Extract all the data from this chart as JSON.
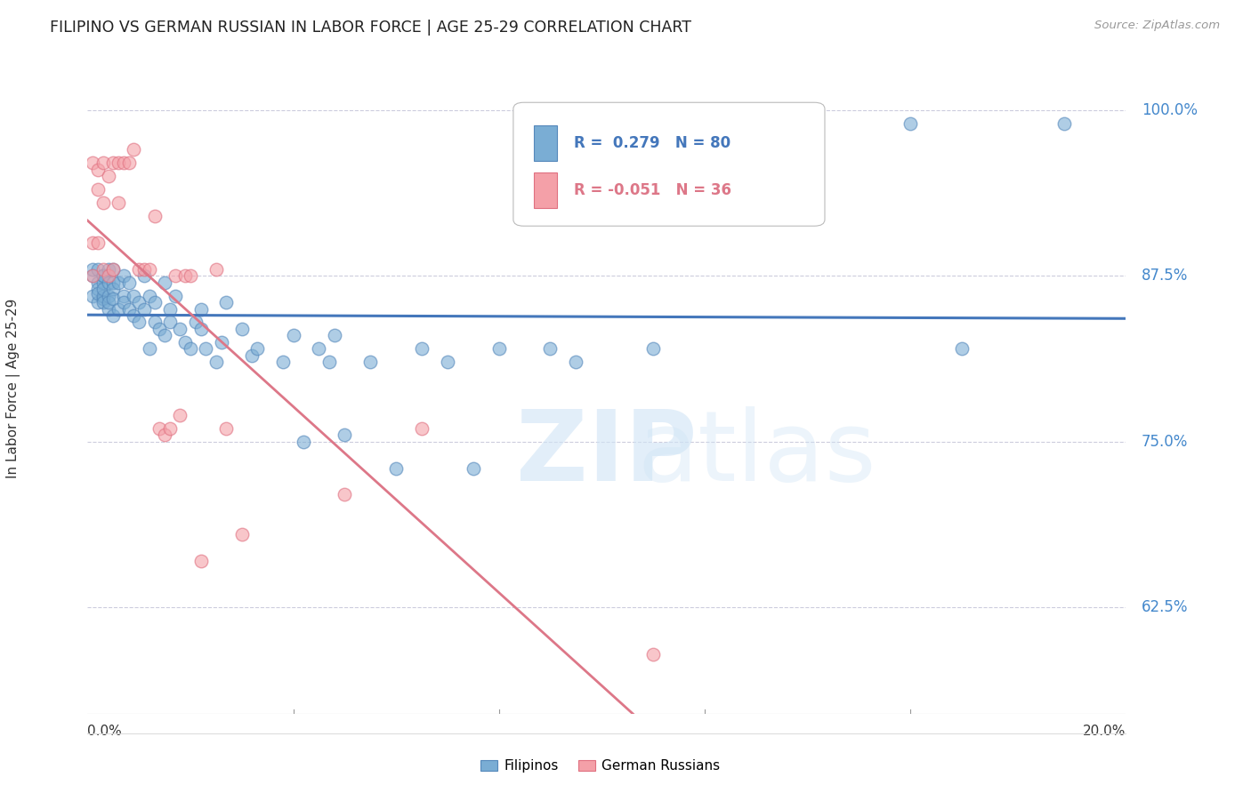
{
  "title": "FILIPINO VS GERMAN RUSSIAN IN LABOR FORCE | AGE 25-29 CORRELATION CHART",
  "source": "Source: ZipAtlas.com",
  "ylabel": "In Labor Force | Age 25-29",
  "ylim": [
    0.545,
    1.035
  ],
  "xlim": [
    0.0,
    0.202
  ],
  "r_filipino": 0.279,
  "n_filipino": 80,
  "r_german": -0.051,
  "n_german": 36,
  "blue_color": "#7AADD4",
  "pink_color": "#F4A0A8",
  "blue_edge": "#5588BB",
  "pink_edge": "#E07080",
  "blue_line": "#4477BB",
  "pink_line": "#DD7788",
  "grid_color": "#CCCCDD",
  "ytick_positions": [
    0.625,
    0.75,
    0.875,
    1.0
  ],
  "ytick_labels": [
    "62.5%",
    "75.0%",
    "87.5%",
    "100.0%"
  ],
  "filipino_x": [
    0.001,
    0.001,
    0.001,
    0.002,
    0.002,
    0.002,
    0.002,
    0.002,
    0.003,
    0.003,
    0.003,
    0.003,
    0.003,
    0.003,
    0.003,
    0.004,
    0.004,
    0.004,
    0.004,
    0.004,
    0.005,
    0.005,
    0.005,
    0.005,
    0.005,
    0.006,
    0.006,
    0.007,
    0.007,
    0.007,
    0.008,
    0.008,
    0.009,
    0.009,
    0.01,
    0.01,
    0.011,
    0.011,
    0.012,
    0.012,
    0.013,
    0.013,
    0.014,
    0.015,
    0.015,
    0.016,
    0.016,
    0.017,
    0.018,
    0.019,
    0.02,
    0.021,
    0.022,
    0.022,
    0.023,
    0.025,
    0.026,
    0.027,
    0.03,
    0.032,
    0.033,
    0.038,
    0.04,
    0.042,
    0.045,
    0.047,
    0.048,
    0.05,
    0.055,
    0.06,
    0.065,
    0.07,
    0.075,
    0.08,
    0.09,
    0.095,
    0.11,
    0.16,
    0.17,
    0.19
  ],
  "filipino_y": [
    0.875,
    0.88,
    0.86,
    0.855,
    0.87,
    0.865,
    0.88,
    0.862,
    0.858,
    0.87,
    0.86,
    0.875,
    0.855,
    0.865,
    0.875,
    0.85,
    0.87,
    0.86,
    0.88,
    0.855,
    0.845,
    0.87,
    0.865,
    0.88,
    0.858,
    0.87,
    0.85,
    0.875,
    0.86,
    0.855,
    0.85,
    0.87,
    0.845,
    0.86,
    0.84,
    0.855,
    0.875,
    0.85,
    0.82,
    0.86,
    0.84,
    0.855,
    0.835,
    0.87,
    0.83,
    0.85,
    0.84,
    0.86,
    0.835,
    0.825,
    0.82,
    0.84,
    0.85,
    0.835,
    0.82,
    0.81,
    0.825,
    0.855,
    0.835,
    0.815,
    0.82,
    0.81,
    0.83,
    0.75,
    0.82,
    0.81,
    0.83,
    0.755,
    0.81,
    0.73,
    0.82,
    0.81,
    0.73,
    0.82,
    0.82,
    0.81,
    0.82,
    0.99,
    0.82,
    0.99
  ],
  "german_x": [
    0.001,
    0.001,
    0.001,
    0.002,
    0.002,
    0.002,
    0.003,
    0.003,
    0.003,
    0.004,
    0.004,
    0.005,
    0.005,
    0.006,
    0.006,
    0.007,
    0.008,
    0.009,
    0.01,
    0.011,
    0.012,
    0.013,
    0.014,
    0.015,
    0.016,
    0.017,
    0.018,
    0.019,
    0.02,
    0.022,
    0.025,
    0.027,
    0.03,
    0.05,
    0.065,
    0.11
  ],
  "german_y": [
    0.875,
    0.96,
    0.9,
    0.955,
    0.9,
    0.94,
    0.88,
    0.96,
    0.93,
    0.95,
    0.875,
    0.88,
    0.96,
    0.93,
    0.96,
    0.96,
    0.96,
    0.97,
    0.88,
    0.88,
    0.88,
    0.92,
    0.76,
    0.755,
    0.76,
    0.875,
    0.77,
    0.875,
    0.875,
    0.66,
    0.88,
    0.76,
    0.68,
    0.71,
    0.76,
    0.59
  ]
}
